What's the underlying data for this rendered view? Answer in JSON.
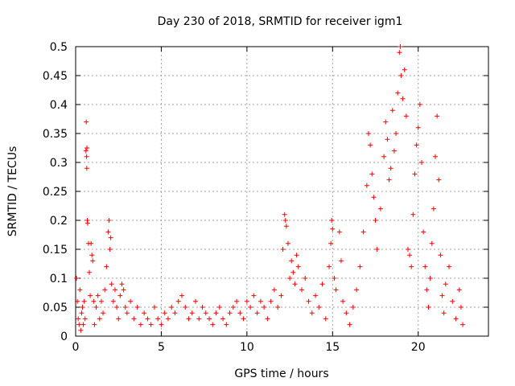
{
  "chart_data": {
    "type": "scatter",
    "title": "Day 230 of 2018, SRMTID for receiver igm1",
    "xlabel": "GPS time / hours",
    "ylabel": "SRMTID / TECUs",
    "xlim": [
      0,
      24.1
    ],
    "ylim": [
      0,
      0.5
    ],
    "x_ticks": [
      0,
      5,
      10,
      15,
      20
    ],
    "y_ticks": [
      0,
      0.05,
      0.1,
      0.15,
      0.2,
      0.25,
      0.3,
      0.35,
      0.4,
      0.45,
      0.5
    ],
    "x_tick_labels": [
      "0",
      "5",
      "10",
      "15",
      "20"
    ],
    "y_tick_labels": [
      "0",
      "0.05",
      "0.1",
      "0.15",
      "0.2",
      "0.25",
      "0.3",
      "0.35",
      "0.4",
      "0.45",
      "0.5"
    ],
    "grid": true,
    "legend": "none",
    "marker": "+",
    "marker_color": "#ff0000",
    "series": [
      {
        "name": "SRMTID",
        "points": [
          [
            0.05,
            0.1
          ],
          [
            0.1,
            0.06
          ],
          [
            0.15,
            0.03
          ],
          [
            0.2,
            0.02
          ],
          [
            0.25,
            0.08
          ],
          [
            0.3,
            0.01
          ],
          [
            0.35,
            0.04
          ],
          [
            0.4,
            0.05
          ],
          [
            0.45,
            0.02
          ],
          [
            0.5,
            0.06
          ],
          [
            0.55,
            0.03
          ],
          [
            0.6,
            0.32
          ],
          [
            0.62,
            0.37
          ],
          [
            0.64,
            0.31
          ],
          [
            0.65,
            0.29
          ],
          [
            0.66,
            0.325
          ],
          [
            0.68,
            0.2
          ],
          [
            0.7,
            0.195
          ],
          [
            0.75,
            0.16
          ],
          [
            0.8,
            0.11
          ],
          [
            0.85,
            0.07
          ],
          [
            0.9,
            0.16
          ],
          [
            0.95,
            0.14
          ],
          [
            1.0,
            0.13
          ],
          [
            1.05,
            0.06
          ],
          [
            1.1,
            0.02
          ],
          [
            1.2,
            0.05
          ],
          [
            1.3,
            0.07
          ],
          [
            1.4,
            0.03
          ],
          [
            1.5,
            0.06
          ],
          [
            1.6,
            0.04
          ],
          [
            1.7,
            0.08
          ],
          [
            1.8,
            0.12
          ],
          [
            1.9,
            0.18
          ],
          [
            1.95,
            0.2
          ],
          [
            2.0,
            0.15
          ],
          [
            2.05,
            0.17
          ],
          [
            2.1,
            0.09
          ],
          [
            2.2,
            0.06
          ],
          [
            2.3,
            0.08
          ],
          [
            2.4,
            0.05
          ],
          [
            2.5,
            0.03
          ],
          [
            2.6,
            0.07
          ],
          [
            2.7,
            0.09
          ],
          [
            2.8,
            0.08
          ],
          [
            2.9,
            0.05
          ],
          [
            3.0,
            0.04
          ],
          [
            3.2,
            0.06
          ],
          [
            3.4,
            0.03
          ],
          [
            3.6,
            0.05
          ],
          [
            3.8,
            0.02
          ],
          [
            4.0,
            0.04
          ],
          [
            4.2,
            0.03
          ],
          [
            4.4,
            0.02
          ],
          [
            4.6,
            0.05
          ],
          [
            4.8,
            0.03
          ],
          [
            5.0,
            0.02
          ],
          [
            5.2,
            0.04
          ],
          [
            5.4,
            0.03
          ],
          [
            5.6,
            0.05
          ],
          [
            5.8,
            0.04
          ],
          [
            6.0,
            0.06
          ],
          [
            6.2,
            0.07
          ],
          [
            6.4,
            0.05
          ],
          [
            6.6,
            0.03
          ],
          [
            6.8,
            0.04
          ],
          [
            7.0,
            0.06
          ],
          [
            7.2,
            0.03
          ],
          [
            7.4,
            0.05
          ],
          [
            7.6,
            0.04
          ],
          [
            7.8,
            0.03
          ],
          [
            8.0,
            0.02
          ],
          [
            8.2,
            0.04
          ],
          [
            8.4,
            0.05
          ],
          [
            8.6,
            0.03
          ],
          [
            8.8,
            0.02
          ],
          [
            9.0,
            0.04
          ],
          [
            9.2,
            0.05
          ],
          [
            9.4,
            0.06
          ],
          [
            9.6,
            0.04
          ],
          [
            9.8,
            0.03
          ],
          [
            10.0,
            0.06
          ],
          [
            10.2,
            0.05
          ],
          [
            10.4,
            0.07
          ],
          [
            10.6,
            0.04
          ],
          [
            10.8,
            0.06
          ],
          [
            11.0,
            0.05
          ],
          [
            11.2,
            0.03
          ],
          [
            11.4,
            0.06
          ],
          [
            11.6,
            0.08
          ],
          [
            11.8,
            0.05
          ],
          [
            12.0,
            0.07
          ],
          [
            12.1,
            0.15
          ],
          [
            12.2,
            0.21
          ],
          [
            12.25,
            0.2
          ],
          [
            12.3,
            0.19
          ],
          [
            12.4,
            0.16
          ],
          [
            12.5,
            0.1
          ],
          [
            12.6,
            0.13
          ],
          [
            12.7,
            0.11
          ],
          [
            12.8,
            0.09
          ],
          [
            12.9,
            0.14
          ],
          [
            13.0,
            0.12
          ],
          [
            13.2,
            0.08
          ],
          [
            13.4,
            0.1
          ],
          [
            13.6,
            0.06
          ],
          [
            13.8,
            0.04
          ],
          [
            14.0,
            0.07
          ],
          [
            14.2,
            0.05
          ],
          [
            14.4,
            0.09
          ],
          [
            14.6,
            0.03
          ],
          [
            14.8,
            0.12
          ],
          [
            14.9,
            0.16
          ],
          [
            14.95,
            0.2
          ],
          [
            15.0,
            0.185
          ],
          [
            15.1,
            0.1
          ],
          [
            15.2,
            0.08
          ],
          [
            15.4,
            0.18
          ],
          [
            15.5,
            0.13
          ],
          [
            15.6,
            0.06
          ],
          [
            15.8,
            0.04
          ],
          [
            16.0,
            0.02
          ],
          [
            16.2,
            0.05
          ],
          [
            16.4,
            0.08
          ],
          [
            16.6,
            0.12
          ],
          [
            16.8,
            0.18
          ],
          [
            17.0,
            0.26
          ],
          [
            17.1,
            0.35
          ],
          [
            17.2,
            0.33
          ],
          [
            17.3,
            0.28
          ],
          [
            17.4,
            0.24
          ],
          [
            17.5,
            0.2
          ],
          [
            17.6,
            0.15
          ],
          [
            17.8,
            0.22
          ],
          [
            18.0,
            0.31
          ],
          [
            18.1,
            0.37
          ],
          [
            18.2,
            0.34
          ],
          [
            18.3,
            0.27
          ],
          [
            18.4,
            0.29
          ],
          [
            18.5,
            0.39
          ],
          [
            18.6,
            0.32
          ],
          [
            18.7,
            0.35
          ],
          [
            18.8,
            0.42
          ],
          [
            18.9,
            0.49
          ],
          [
            18.95,
            0.5
          ],
          [
            19.0,
            0.45
          ],
          [
            19.1,
            0.41
          ],
          [
            19.2,
            0.46
          ],
          [
            19.3,
            0.38
          ],
          [
            19.4,
            0.15
          ],
          [
            19.5,
            0.14
          ],
          [
            19.6,
            0.12
          ],
          [
            19.7,
            0.21
          ],
          [
            19.8,
            0.28
          ],
          [
            19.9,
            0.33
          ],
          [
            20.0,
            0.36
          ],
          [
            20.1,
            0.4
          ],
          [
            20.2,
            0.3
          ],
          [
            20.3,
            0.18
          ],
          [
            20.4,
            0.12
          ],
          [
            20.5,
            0.08
          ],
          [
            20.6,
            0.05
          ],
          [
            20.7,
            0.1
          ],
          [
            20.8,
            0.16
          ],
          [
            20.9,
            0.22
          ],
          [
            21.0,
            0.31
          ],
          [
            21.1,
            0.38
          ],
          [
            21.2,
            0.27
          ],
          [
            21.3,
            0.14
          ],
          [
            21.4,
            0.07
          ],
          [
            21.5,
            0.04
          ],
          [
            21.6,
            0.09
          ],
          [
            21.8,
            0.12
          ],
          [
            22.0,
            0.06
          ],
          [
            22.2,
            0.03
          ],
          [
            22.4,
            0.08
          ],
          [
            22.5,
            0.05
          ],
          [
            22.6,
            0.02
          ]
        ]
      }
    ]
  }
}
